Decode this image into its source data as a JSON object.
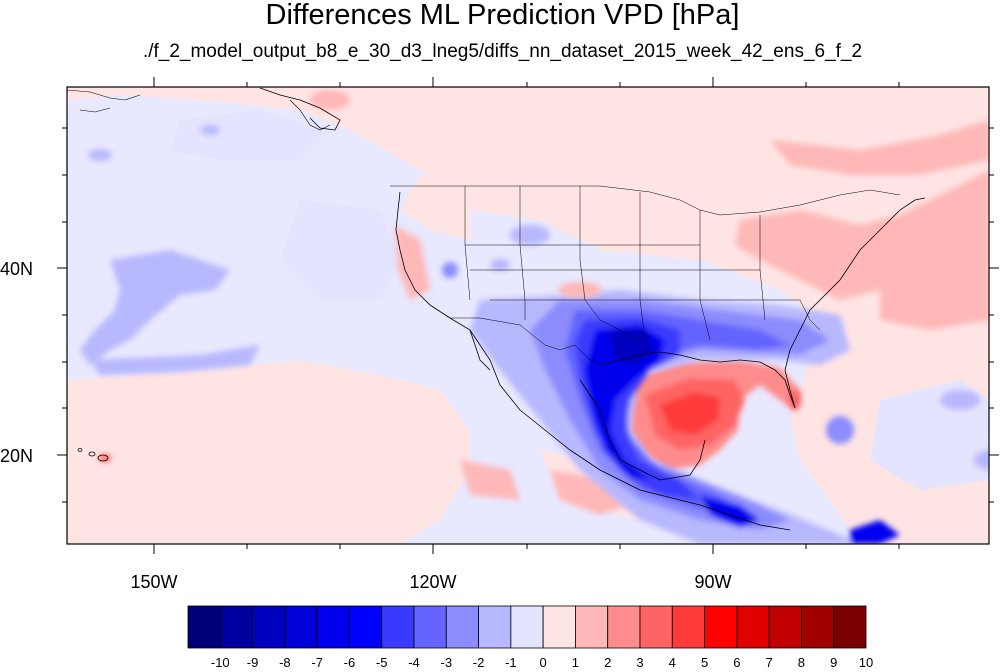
{
  "title": "Differences ML Prediction VPD [hPa]",
  "subtitle": "./f_2_model_output_b8_e_30_d3_lneg5/diffs_nn_dataset_2015_week_42_ens_6_f_2",
  "map": {
    "lat_labels": [
      {
        "value": 40,
        "text": "40N"
      },
      {
        "value": 20,
        "text": "20N"
      }
    ],
    "lon_labels": [
      {
        "value": -150,
        "text": "150W"
      },
      {
        "value": -120,
        "text": "120W"
      },
      {
        "value": -90,
        "text": "90W"
      }
    ],
    "extent": {
      "lon_min": -160,
      "lon_max": -62,
      "lat_min": 11,
      "lat_max": 60
    }
  },
  "colorbar": {
    "levels": [
      "-10",
      "-9",
      "-8",
      "-7",
      "-6",
      "-5",
      "-4",
      "-3",
      "-2",
      "-1",
      "0",
      "1",
      "2",
      "3",
      "4",
      "5",
      "6",
      "7",
      "8",
      "9",
      "10"
    ],
    "colors": [
      "#00007a",
      "#0000a0",
      "#0000bf",
      "#0000d8",
      "#0000ee",
      "#0000ff",
      "#3a3aff",
      "#6464ff",
      "#8c8cff",
      "#b8b8ff",
      "#e4e4ff",
      "#ffe4e4",
      "#ffb8b8",
      "#ff8c8c",
      "#ff6464",
      "#ff3a3a",
      "#ff0000",
      "#e00000",
      "#c00000",
      "#a00000",
      "#7a0000"
    ]
  }
}
